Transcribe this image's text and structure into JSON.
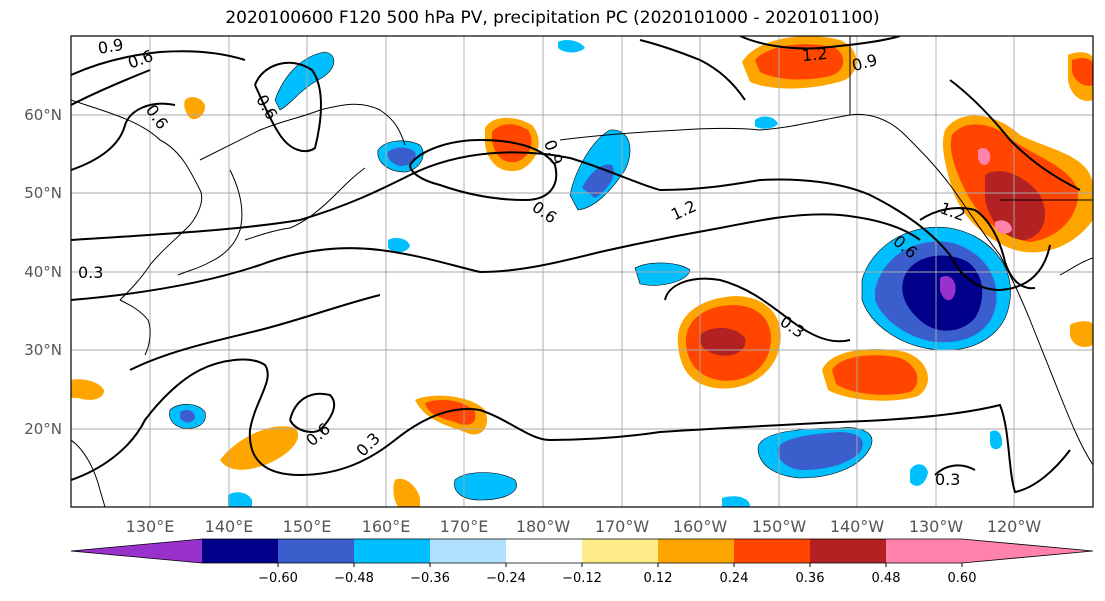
{
  "title": "2020100600 F120 500 hPa PV, precipitation PC (2020101000 - 2020101100)",
  "map": {
    "lat_ticks": [
      "20°N",
      "30°N",
      "40°N",
      "50°N",
      "60°N"
    ],
    "lon_ticks": [
      "130°E",
      "140°E",
      "150°E",
      "160°E",
      "170°E",
      "180°W",
      "170°W",
      "160°W",
      "150°W",
      "140°W",
      "130°W",
      "120°W"
    ],
    "lon_range_deg": [
      120,
      250
    ],
    "lat_range_deg": [
      10,
      70
    ]
  },
  "pv_contours": [
    {
      "label": "0.9",
      "rotation": -10
    },
    {
      "label": "0.6",
      "rotation": -20
    },
    {
      "label": "0.6",
      "rotation": 55
    },
    {
      "label": "0.6",
      "rotation": 60
    },
    {
      "label": "0.9",
      "rotation": 70
    },
    {
      "label": "0.6",
      "rotation": 35
    },
    {
      "label": "1.2",
      "rotation": -25
    },
    {
      "label": "1.2",
      "rotation": -5
    },
    {
      "label": "0.9",
      "rotation": -15
    },
    {
      "label": "1.2",
      "rotation": 20
    },
    {
      "label": "0.6",
      "rotation": 40
    },
    {
      "label": "0.3",
      "rotation": 0
    },
    {
      "label": "0.3",
      "rotation": 35
    },
    {
      "label": "0.6",
      "rotation": -40
    },
    {
      "label": "0.3",
      "rotation": -45
    },
    {
      "label": "0.3",
      "rotation": 0
    }
  ],
  "colorbar": {
    "ticks": [
      "−0.60",
      "−0.48",
      "−0.36",
      "−0.24",
      "−0.12",
      "0.12",
      "0.24",
      "0.36",
      "0.48",
      "0.60"
    ],
    "colors": [
      "#9932cc",
      "#00008b",
      "#3a5fcd",
      "#00bfff",
      "#b0e2ff",
      "#ffffff",
      "#ffec8b",
      "#ffa500",
      "#ff4500",
      "#b22222",
      "#ff82ab",
      "#ff82ab"
    ],
    "extend": "both"
  }
}
